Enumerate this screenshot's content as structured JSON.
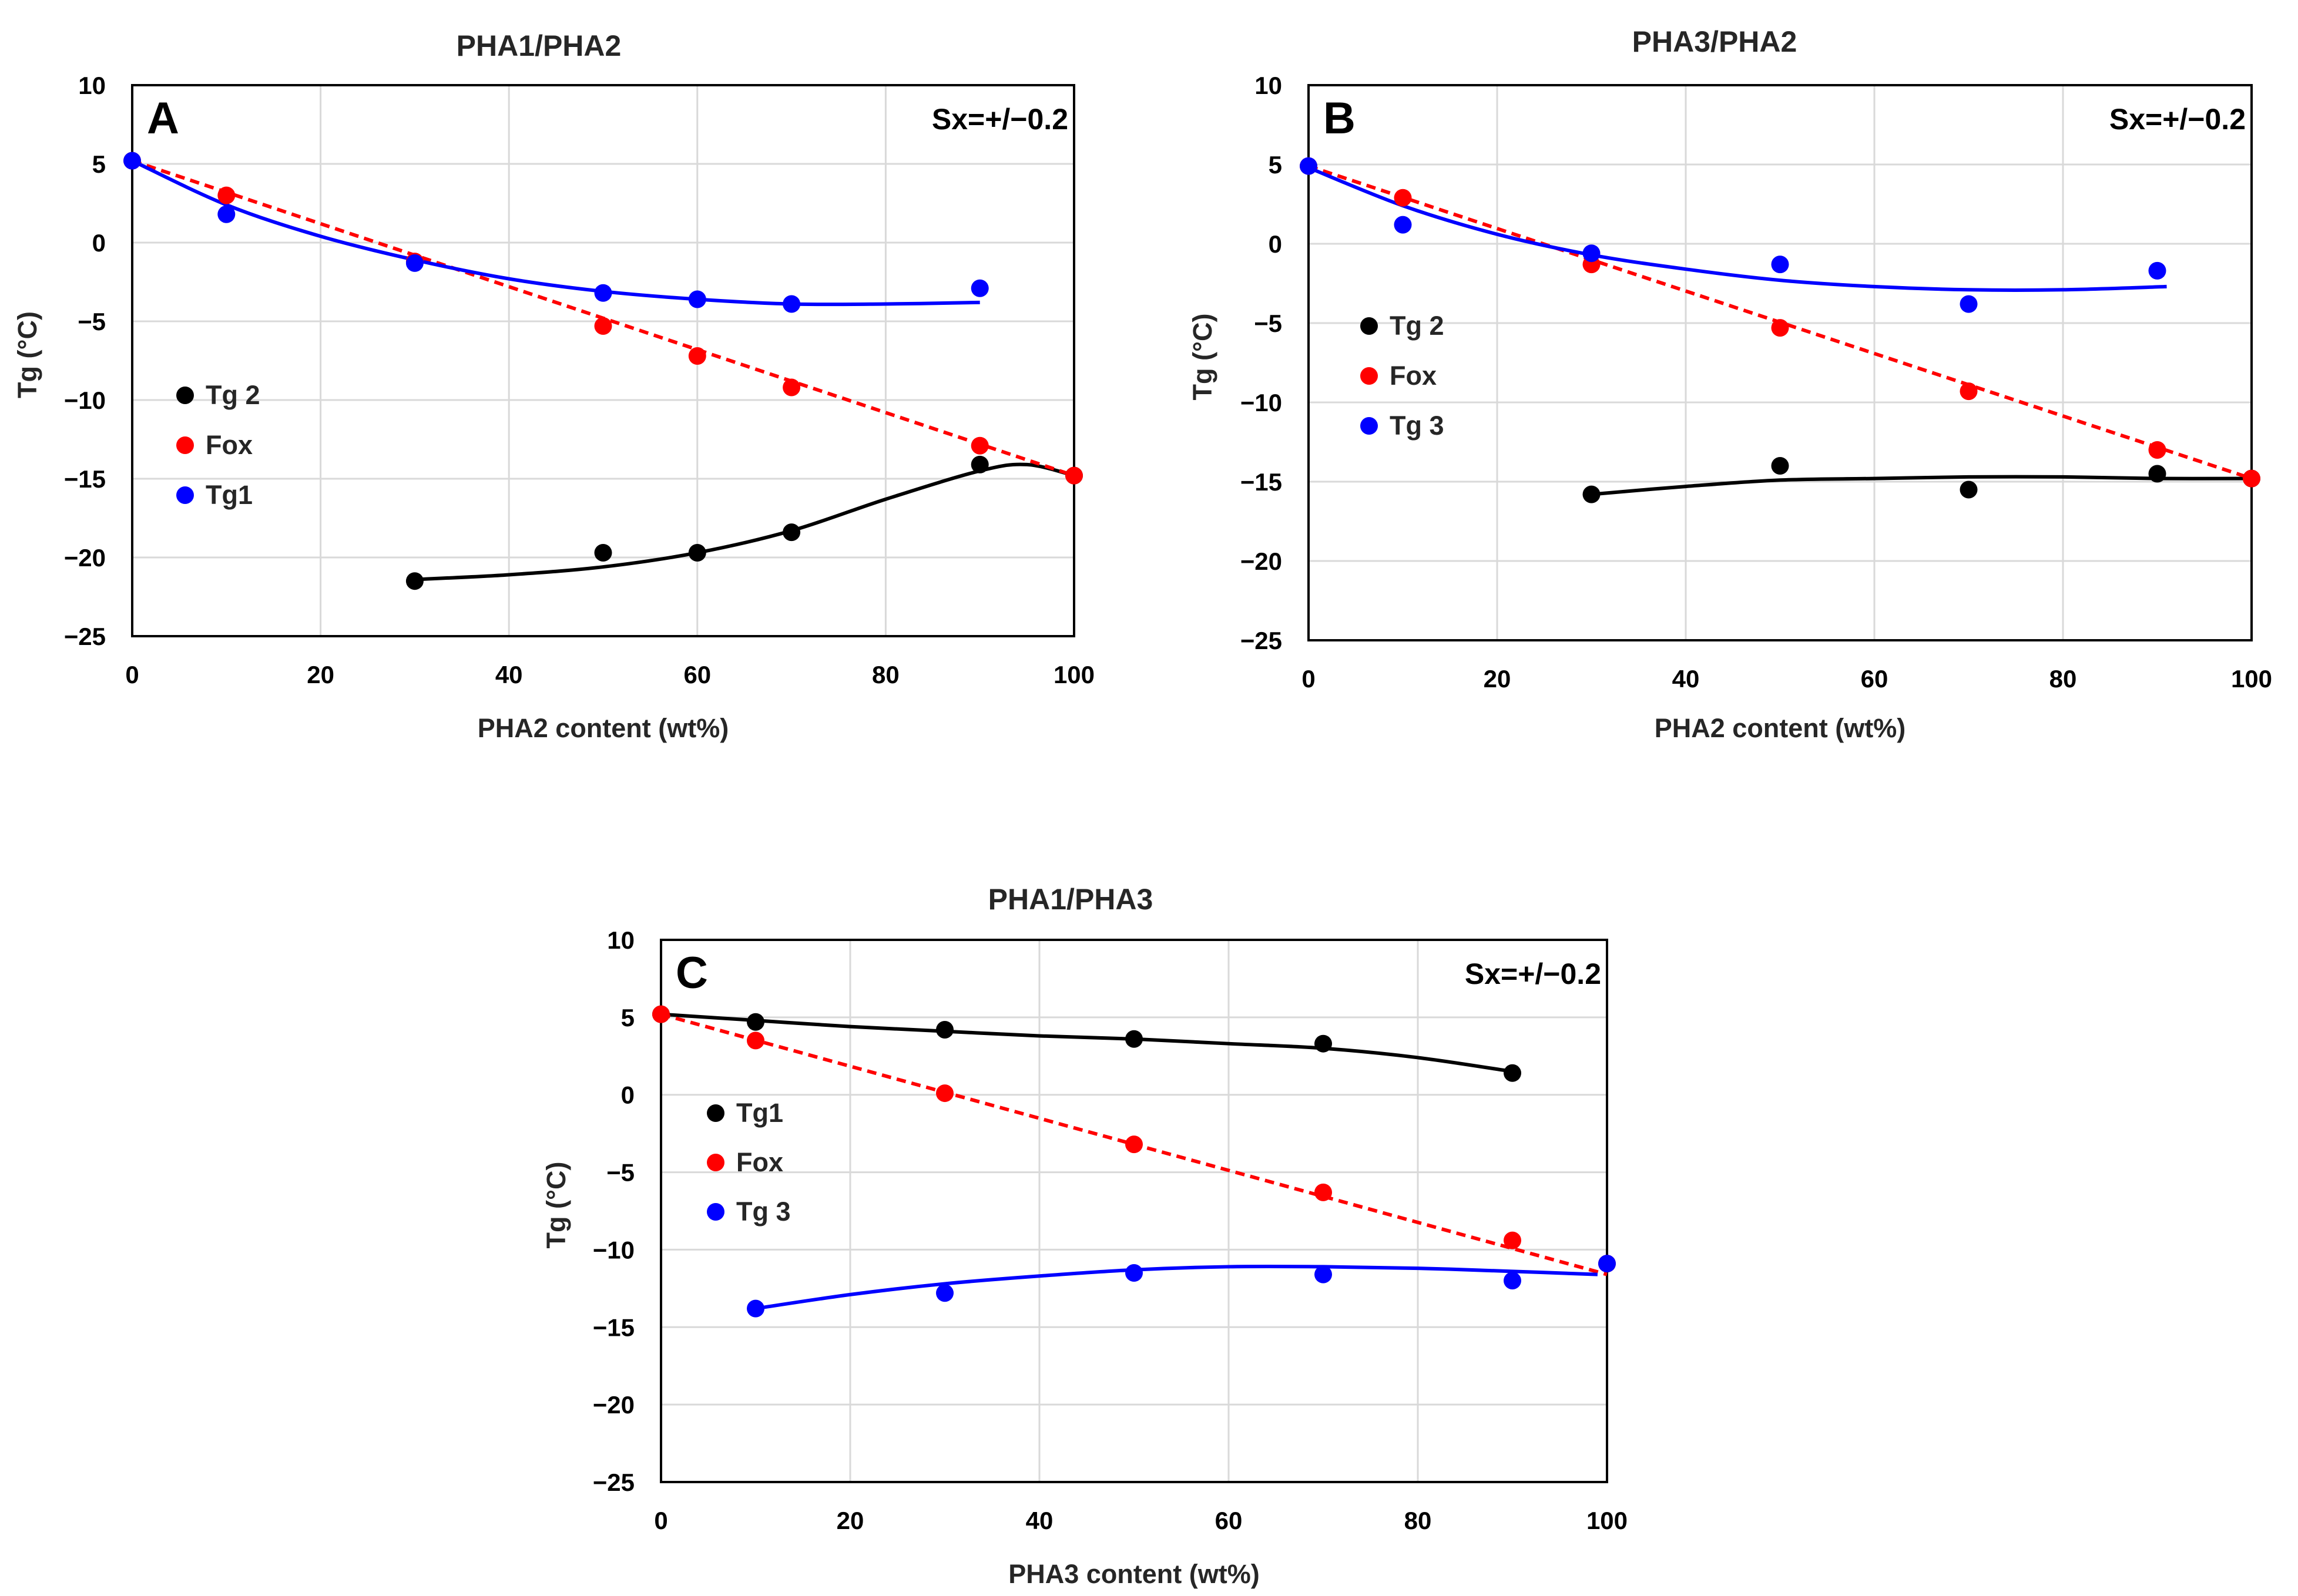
{
  "chart_data": [
    {
      "type": "scatter",
      "panel_label": "A",
      "title": "PHA1/PHA2",
      "annotation": "Sx=+/−0.2",
      "xlabel": "PHA2 content (wt%)",
      "ylabel": "Tg (°C)",
      "xlim": [
        0,
        100
      ],
      "ylim": [
        -25,
        10
      ],
      "xticks": [
        0,
        20,
        40,
        60,
        80,
        100
      ],
      "yticks": [
        10,
        5,
        0,
        -5,
        -10,
        -15,
        -20,
        -25
      ],
      "xtick_labels": [
        "0",
        "20",
        "40",
        "60",
        "80",
        "100"
      ],
      "ytick_labels": [
        "10",
        "5",
        "0",
        "−5",
        "−10",
        "−15",
        "−20",
        "−25"
      ],
      "grid": true,
      "legend_position": "middle-left",
      "series": [
        {
          "name": "Tg 2",
          "color": "#000000",
          "x": [
            30,
            50,
            60,
            70,
            90,
            100
          ],
          "y": [
            -21.5,
            -19.7,
            -19.7,
            -18.4,
            -14.1,
            -14.8
          ],
          "fit": {
            "style": "solid",
            "x": [
              30,
              40,
              50,
              60,
              70,
              80,
              90,
              95,
              100
            ],
            "y": [
              -21.4,
              -21.1,
              -20.6,
              -19.7,
              -18.3,
              -16.3,
              -14.5,
              -14.1,
              -14.8
            ]
          }
        },
        {
          "name": "Fox",
          "color": "#ff0000",
          "x": [
            0,
            10,
            30,
            50,
            60,
            70,
            90,
            100
          ],
          "y": [
            5.2,
            3.0,
            -1.2,
            -5.3,
            -7.2,
            -9.2,
            -12.9,
            -14.8
          ],
          "fit": {
            "style": "dashed",
            "x": [
              0,
              100
            ],
            "y": [
              5.2,
              -14.8
            ]
          }
        },
        {
          "name": "Tg1",
          "color": "#0000ff",
          "x": [
            0,
            10,
            30,
            50,
            60,
            70,
            90
          ],
          "y": [
            5.2,
            1.8,
            -1.3,
            -3.2,
            -3.6,
            -3.9,
            -2.9
          ],
          "fit": {
            "style": "solid",
            "x": [
              0,
              10,
              20,
              30,
              40,
              50,
              60,
              70,
              80,
              90
            ],
            "y": [
              5.2,
              2.4,
              0.4,
              -1.1,
              -2.3,
              -3.1,
              -3.6,
              -3.9,
              -3.9,
              -3.8
            ]
          }
        }
      ]
    },
    {
      "type": "scatter",
      "panel_label": "B",
      "title": "PHA3/PHA2",
      "annotation": "Sx=+/−0.2",
      "xlabel": "PHA2 content (wt%)",
      "ylabel": "Tg (°C)",
      "xlim": [
        0,
        100
      ],
      "ylim": [
        -25,
        10
      ],
      "xticks": [
        0,
        20,
        40,
        60,
        80,
        100
      ],
      "yticks": [
        10,
        5,
        0,
        -5,
        -10,
        -15,
        -20,
        -25
      ],
      "xtick_labels": [
        "0",
        "20",
        "40",
        "60",
        "80",
        "100"
      ],
      "ytick_labels": [
        "10",
        "5",
        "0",
        "−5",
        "−10",
        "−15",
        "−20",
        "−25"
      ],
      "grid": true,
      "legend_position": "middle-left",
      "series": [
        {
          "name": "Tg 2",
          "color": "#000000",
          "x": [
            30,
            50,
            70,
            90,
            100
          ],
          "y": [
            -15.8,
            -14.0,
            -15.5,
            -14.5,
            -14.8
          ],
          "fit": {
            "style": "solid",
            "x": [
              30,
              40,
              50,
              60,
              70,
              80,
              90,
              100
            ],
            "y": [
              -15.8,
              -15.3,
              -14.9,
              -14.8,
              -14.7,
              -14.7,
              -14.8,
              -14.8
            ]
          }
        },
        {
          "name": "Fox",
          "color": "#ff0000",
          "x": [
            0,
            10,
            30,
            50,
            70,
            90,
            100
          ],
          "y": [
            4.9,
            2.9,
            -1.3,
            -5.3,
            -9.3,
            -13.0,
            -14.8
          ],
          "fit": {
            "style": "dashed",
            "x": [
              0,
              100
            ],
            "y": [
              4.9,
              -14.8
            ]
          }
        },
        {
          "name": "Tg 3",
          "color": "#0000ff",
          "x": [
            0,
            10,
            30,
            50,
            70,
            90
          ],
          "y": [
            4.9,
            1.2,
            -0.6,
            -1.3,
            -3.8,
            -1.7
          ],
          "fit": {
            "style": "solid",
            "x": [
              0,
              10,
              20,
              30,
              40,
              50,
              60,
              70,
              80,
              91
            ],
            "y": [
              4.8,
              2.4,
              0.6,
              -0.7,
              -1.6,
              -2.3,
              -2.7,
              -2.9,
              -2.9,
              -2.7
            ]
          }
        }
      ]
    },
    {
      "type": "scatter",
      "panel_label": "C",
      "title": "PHA1/PHA3",
      "annotation": "Sx=+/−0.2",
      "xlabel": "PHA3 content (wt%)",
      "ylabel": "Tg (°C)",
      "xlim": [
        0,
        100
      ],
      "ylim": [
        -25,
        10
      ],
      "xticks": [
        0,
        20,
        40,
        60,
        80,
        100
      ],
      "yticks": [
        10,
        5,
        0,
        -5,
        -10,
        -15,
        -20,
        -25
      ],
      "xtick_labels": [
        "0",
        "20",
        "40",
        "60",
        "80",
        "100"
      ],
      "ytick_labels": [
        "10",
        "5",
        "0",
        "−5",
        "−10",
        "−15",
        "−20",
        "−25"
      ],
      "grid": true,
      "legend_position": "middle-left",
      "series": [
        {
          "name": "Tg1",
          "color": "#000000",
          "x": [
            0,
            10,
            30,
            50,
            70,
            90
          ],
          "y": [
            5.2,
            4.7,
            4.2,
            3.6,
            3.3,
            1.4
          ],
          "fit": {
            "style": "solid",
            "x": [
              0,
              10,
              20,
              30,
              40,
              50,
              60,
              70,
              80,
              90
            ],
            "y": [
              5.2,
              4.8,
              4.4,
              4.1,
              3.8,
              3.6,
              3.3,
              3.0,
              2.4,
              1.5
            ]
          }
        },
        {
          "name": "Fox",
          "color": "#ff0000",
          "x": [
            0,
            10,
            30,
            50,
            70,
            90,
            100
          ],
          "y": [
            5.2,
            3.5,
            0.1,
            -3.2,
            -6.3,
            -9.4,
            -10.9
          ],
          "fit": {
            "style": "dashed",
            "x": [
              0,
              100
            ],
            "y": [
              5.2,
              -11.6
            ]
          }
        },
        {
          "name": "Tg 3",
          "color": "#0000ff",
          "x": [
            10,
            30,
            50,
            70,
            90,
            100
          ],
          "y": [
            -13.8,
            -12.8,
            -11.5,
            -11.6,
            -12.0,
            -10.9
          ],
          "fit": {
            "style": "solid",
            "x": [
              10,
              20,
              30,
              40,
              50,
              60,
              70,
              80,
              90,
              99
            ],
            "y": [
              -13.8,
              -12.9,
              -12.2,
              -11.7,
              -11.3,
              -11.1,
              -11.1,
              -11.2,
              -11.4,
              -11.6
            ]
          }
        }
      ]
    }
  ]
}
